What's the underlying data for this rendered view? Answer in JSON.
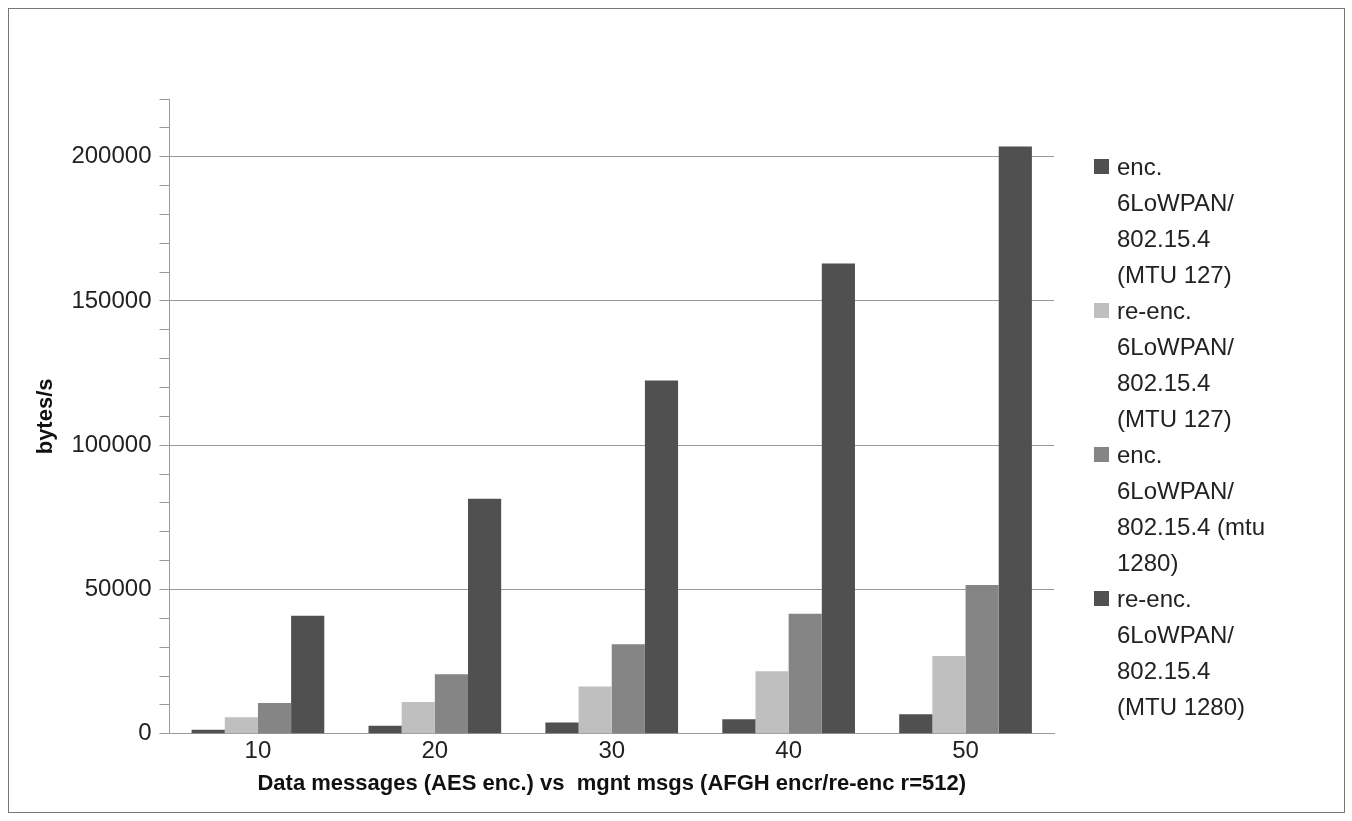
{
  "chart_data": {
    "type": "bar",
    "xlabel": "Data messages (AES enc.) vs  mgnt msgs (AFGH encr/re-enc r=512)",
    "ylabel": "bytes/s",
    "categories": [
      "10",
      "20",
      "30",
      "40",
      "50"
    ],
    "series": [
      {
        "name": "enc. 6LoWPAN/ 802.15.4 (MTU 127)",
        "color": "#505050",
        "values": [
          1400,
          2800,
          3900,
          5000,
          6800
        ]
      },
      {
        "name": "re-enc. 6LoWPAN/ 802.15.4 (MTU 127)",
        "color": "#bfbfbf",
        "values": [
          5700,
          11000,
          16400,
          21700,
          27000
        ]
      },
      {
        "name": "enc. 6LoWPAN/ 802.15.4 (mtu 1280)",
        "color": "#858585",
        "values": [
          10700,
          20600,
          31000,
          41600,
          51600
        ]
      },
      {
        "name": "re-enc. 6LoWPAN/ 802.15.4 (MTU 1280)",
        "color": "#505050",
        "values": [
          40900,
          81500,
          122400,
          163000,
          203500
        ]
      }
    ],
    "ylim": [
      0,
      220000
    ],
    "yticks": [
      0,
      {
        "value": 10000,
        "label": null
      },
      {
        "value": 20000,
        "label": null
      },
      {
        "value": 30000,
        "label": null
      },
      {
        "value": 40000,
        "label": null
      },
      50000,
      {
        "value": 60000,
        "label": null
      },
      {
        "value": 70000,
        "label": null
      },
      {
        "value": 80000,
        "label": null
      },
      {
        "value": 90000,
        "label": null
      },
      100000,
      {
        "value": 110000,
        "label": null
      },
      {
        "value": 120000,
        "label": null
      },
      {
        "value": 130000,
        "label": null
      },
      {
        "value": 140000,
        "label": null
      },
      150000,
      {
        "value": 160000,
        "label": null
      },
      {
        "value": 170000,
        "label": null
      },
      {
        "value": 180000,
        "label": null
      },
      {
        "value": 190000,
        "label": null
      },
      200000,
      {
        "value": 210000,
        "label": null
      },
      {
        "value": 220000,
        "label": null
      }
    ],
    "grid": "y",
    "legend": "right"
  }
}
